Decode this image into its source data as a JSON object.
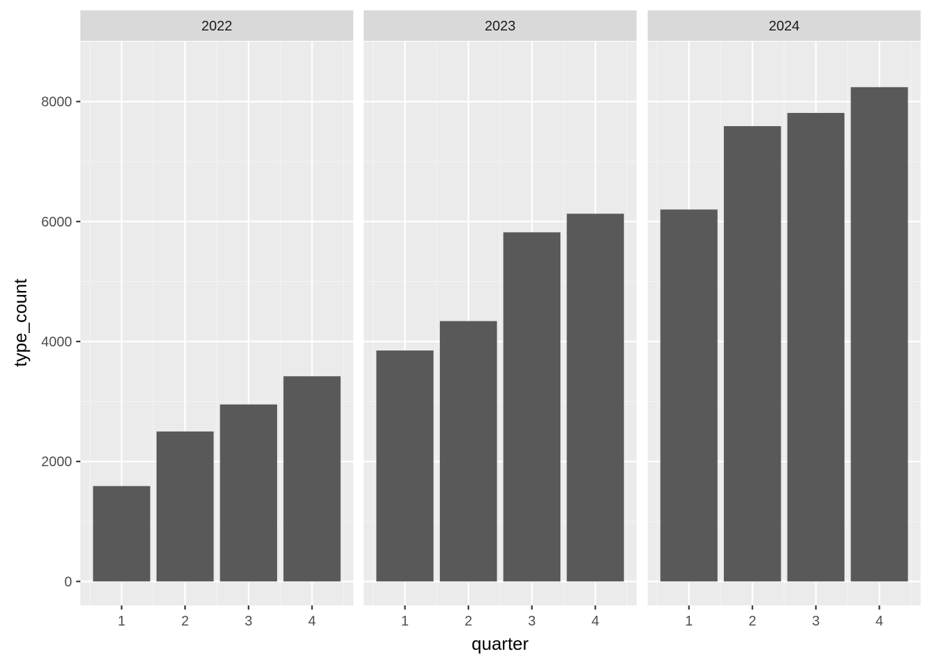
{
  "chart_data": {
    "type": "bar",
    "facet_by": "year",
    "facets": [
      {
        "label": "2022",
        "categories": [
          "1",
          "2",
          "3",
          "4"
        ],
        "values": [
          1590,
          2500,
          2950,
          3420
        ]
      },
      {
        "label": "2023",
        "categories": [
          "1",
          "2",
          "3",
          "4"
        ],
        "values": [
          3850,
          4340,
          5820,
          6130
        ]
      },
      {
        "label": "2024",
        "categories": [
          "1",
          "2",
          "3",
          "4"
        ],
        "values": [
          6200,
          7590,
          7810,
          8240
        ]
      }
    ],
    "xlabel": "quarter",
    "ylabel": "type_count",
    "ylim": [
      -400,
      9000
    ],
    "yticks": [
      0,
      2000,
      4000,
      6000,
      8000
    ],
    "ytick_labels": [
      "0",
      "2000",
      "4000",
      "6000",
      "8000"
    ],
    "grid": true
  },
  "colors": {
    "bar": "#595959",
    "panel_bg": "#EBEBEB",
    "strip_bg": "#D9D9D9",
    "grid_major": "#FFFFFF",
    "grid_minor": "#F4F4F4",
    "tick_text": "#4D4D4D",
    "title_text": "#000000",
    "strip_text": "#1A1A1A",
    "tick_mark": "#333333"
  }
}
